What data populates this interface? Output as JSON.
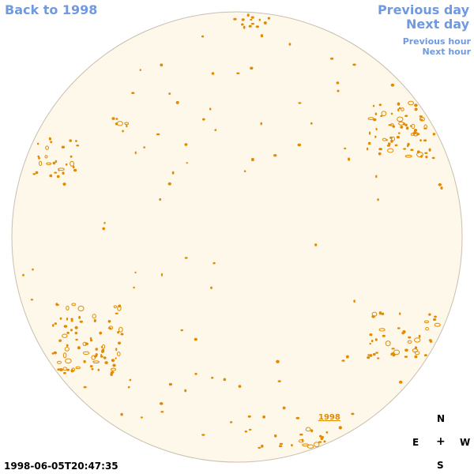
{
  "nav": {
    "back": "Back to 1998",
    "previous_day": "Previous day",
    "next_day": "Next day",
    "previous_hour": "Previous hour",
    "next_hour": "Next hour"
  },
  "compass": {
    "north": "N",
    "east": "E",
    "center": "+",
    "west": "W",
    "south": "S"
  },
  "timestamp": "1998-06-05T20:47:35",
  "region_label": "1998",
  "colors": {
    "nav": "#6f9ae0",
    "disk_fill": "#fdf8e9",
    "disk_edge": "#c8bfae",
    "contour": "#e28a00"
  }
}
